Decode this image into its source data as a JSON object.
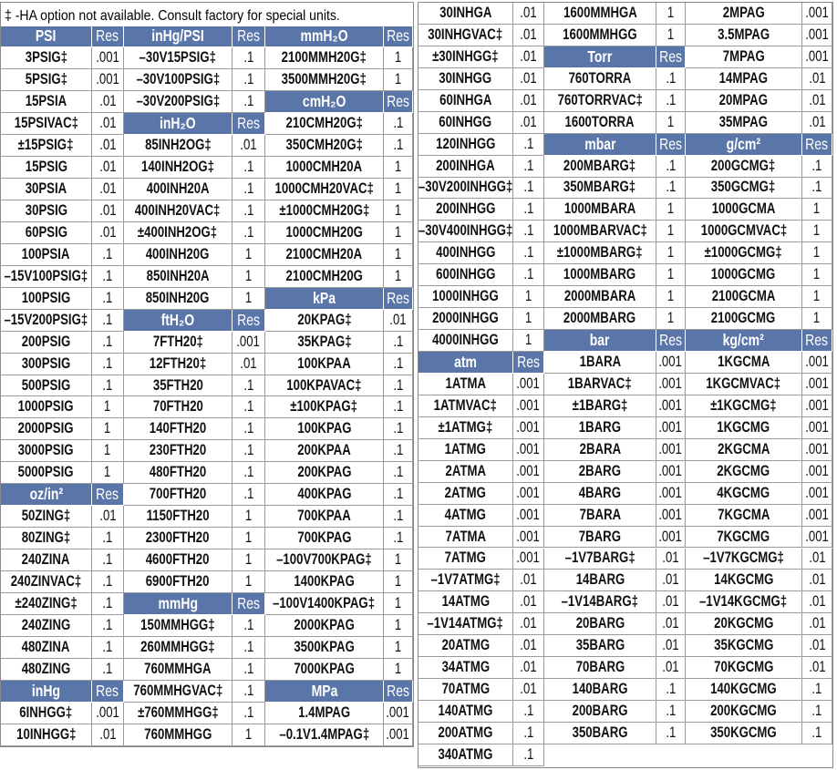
{
  "note": "‡ -HA option not available.     Consult factory for special units.",
  "colors": {
    "header_bg": "#5a76a8",
    "header_text": "#ffffff",
    "border": "#9a9a9a"
  },
  "left_table": {
    "columns": [
      [
        {
          "h": "PSI",
          "r": "Res"
        },
        [
          "3PSIG‡",
          ".001"
        ],
        [
          "5PSIG‡",
          ".001"
        ],
        [
          "15PSIA",
          ".01"
        ],
        [
          "15PSIVAC‡",
          ".01"
        ],
        [
          "±15PSIG‡",
          ".01"
        ],
        [
          "15PSIG",
          ".01"
        ],
        [
          "30PSIA",
          ".01"
        ],
        [
          "30PSIG",
          ".01"
        ],
        [
          "60PSIG",
          ".01"
        ],
        [
          "100PSIA",
          ".1"
        ],
        [
          "–15V100PSIG‡",
          ".1"
        ],
        [
          "100PSIG",
          ".1"
        ],
        [
          "–15V200PSIG‡",
          ".1"
        ],
        [
          "200PSIG",
          ".1"
        ],
        [
          "300PSIG",
          ".1"
        ],
        [
          "500PSIG",
          ".1"
        ],
        [
          "1000PSIG",
          "1"
        ],
        [
          "2000PSIG",
          "1"
        ],
        [
          "3000PSIG",
          "1"
        ],
        [
          "5000PSIG",
          "1"
        ],
        {
          "h": "oz/in²",
          "r": "Res"
        },
        [
          "50ZING‡",
          ".01"
        ],
        [
          "80ZING‡",
          ".1"
        ],
        [
          "240ZINA",
          ".1"
        ],
        [
          "240ZINVAC‡",
          ".1"
        ],
        [
          "±240ZING‡",
          ".1"
        ],
        [
          "240ZING",
          ".1"
        ],
        [
          "480ZINA",
          ".1"
        ],
        [
          "480ZING",
          ".1"
        ],
        {
          "h": "inHg",
          "r": "Res"
        },
        [
          "6INHGG‡",
          ".001"
        ],
        [
          "10INHGG‡",
          ".01"
        ]
      ],
      [
        {
          "h": "inHg/PSI",
          "r": "Res"
        },
        [
          "–30V15PSIG‡",
          ".1"
        ],
        [
          "–30V100PSIG‡",
          ".1"
        ],
        [
          "–30V200PSIG‡",
          ".1"
        ],
        {
          "h": "inH₂O",
          "r": "Res"
        },
        [
          "85INH2OG‡",
          ".01"
        ],
        [
          "140INH2OG‡",
          ".1"
        ],
        [
          "400INH20A",
          ".1"
        ],
        [
          "400INH20VAC‡",
          ".1"
        ],
        [
          "±400INH2OG‡",
          ".1"
        ],
        [
          "400INH20G",
          "1"
        ],
        [
          "850INH20A",
          "1"
        ],
        [
          "850INH20G",
          "1"
        ],
        {
          "h": "ftH₂O",
          "r": "Res"
        },
        [
          "7FTH20‡",
          ".001"
        ],
        [
          "12FTH20‡",
          ".01"
        ],
        [
          "35FTH20",
          ".1"
        ],
        [
          "70FTH20",
          ".1"
        ],
        [
          "140FTH20",
          ".1"
        ],
        [
          "230FTH20",
          ".1"
        ],
        [
          "480FTH20",
          ".1"
        ],
        [
          "700FTH20",
          ".1"
        ],
        [
          "1150FTH20",
          "1"
        ],
        [
          "2300FTH20",
          "1"
        ],
        [
          "4600FTH20",
          "1"
        ],
        [
          "6900FTH20",
          "1"
        ],
        {
          "h": "mmHg",
          "r": "Res"
        },
        [
          "150MMHGG‡",
          ".1"
        ],
        [
          "260MMHGG‡",
          ".1"
        ],
        [
          "760MMHGA",
          ".1"
        ],
        [
          "760MMHGVAC‡",
          ".1"
        ],
        [
          "±760MMHGG‡",
          ".1"
        ],
        [
          "760MMHGG",
          "1"
        ]
      ],
      [
        {
          "h": "mmH₂O",
          "r": "Res"
        },
        [
          "2100MMH20G‡",
          "1"
        ],
        [
          "3500MMH20G‡",
          "1"
        ],
        {
          "h": "cmH₂O",
          "r": "Res"
        },
        [
          "210CMH20G‡",
          ".1"
        ],
        [
          "350CMH20G‡",
          ".1"
        ],
        [
          "1000CMH20A",
          "1"
        ],
        [
          "1000CMH20VAC‡",
          "1"
        ],
        [
          "±1000CMH20G‡",
          "1"
        ],
        [
          "1000CMH20G",
          "1"
        ],
        [
          "2100CMH20A",
          "1"
        ],
        [
          "2100CMH20G",
          "1"
        ],
        {
          "h": "kPa",
          "r": "Res"
        },
        [
          "20KPAG‡",
          ".01"
        ],
        [
          "35KPAG‡",
          ".1"
        ],
        [
          "100KPAA",
          ".1"
        ],
        [
          "100KPAVAC‡",
          ".1"
        ],
        [
          "±100KPAG‡",
          ".1"
        ],
        [
          "100KPAG",
          ".1"
        ],
        [
          "200KPAA",
          ".1"
        ],
        [
          "200KPAG",
          ".1"
        ],
        [
          "400KPAG",
          ".1"
        ],
        [
          "700KPAA",
          ".1"
        ],
        [
          "700KPAG",
          ".1"
        ],
        [
          "–100V700KPAG‡",
          "1"
        ],
        [
          "1400KPAG",
          "1"
        ],
        [
          "–100V1400KPAG‡",
          "1"
        ],
        [
          "2000KPAG",
          "1"
        ],
        [
          "3500KPAG",
          "1"
        ],
        [
          "7000KPAG",
          "1"
        ],
        {
          "h": "MPa",
          "r": "Res"
        },
        [
          "1.4MPAG",
          ".001"
        ],
        [
          "–0.1V1.4MPAG‡",
          ".001"
        ]
      ]
    ]
  },
  "right_table": {
    "columns": [
      [
        [
          "30INHGA",
          ".01"
        ],
        [
          "30INHGVAC‡",
          ".01"
        ],
        [
          "±30INHGG‡",
          ".01"
        ],
        [
          "30INHGG",
          ".01"
        ],
        [
          "60INHGA",
          ".01"
        ],
        [
          "60INHGG",
          ".01"
        ],
        [
          "120INHGG",
          ".1"
        ],
        [
          "200INHGA",
          ".1"
        ],
        [
          "–30V200INHGG‡",
          ".1"
        ],
        [
          "200INHGG",
          ".1"
        ],
        [
          "–30V400INHGG‡",
          ".1"
        ],
        [
          "400INHGG",
          ".1"
        ],
        [
          "600INHGG",
          ".1"
        ],
        [
          "1000INHGG",
          "1"
        ],
        [
          "2000INHGG",
          "1"
        ],
        [
          "4000INHGG",
          "1"
        ],
        {
          "h": "atm",
          "r": "Res"
        },
        [
          "1ATMA",
          ".001"
        ],
        [
          "1ATMVAC‡",
          ".001"
        ],
        [
          "±1ATMG‡",
          ".001"
        ],
        [
          "1ATMG",
          ".001"
        ],
        [
          "2ATMA",
          ".001"
        ],
        [
          "2ATMG",
          ".001"
        ],
        [
          "4ATMG",
          ".001"
        ],
        [
          "7ATMA",
          ".001"
        ],
        [
          "7ATMG",
          ".001"
        ],
        [
          "–1V7ATMG‡",
          ".01"
        ],
        [
          "14ATMG",
          ".01"
        ],
        [
          "–1V14ATMG‡",
          ".01"
        ],
        [
          "20ATMG",
          ".01"
        ],
        [
          "34ATMG",
          ".01"
        ],
        [
          "70ATMG",
          ".01"
        ],
        [
          "140ATMG",
          ".1"
        ],
        [
          "200ATMG",
          ".1"
        ],
        [
          "340ATMG",
          ".1"
        ]
      ],
      [
        [
          "1600MMHGA",
          "1"
        ],
        [
          "1600MMHGG",
          "1"
        ],
        {
          "h": "Torr",
          "r": "Res"
        },
        [
          "760TORRA",
          ".1"
        ],
        [
          "760TORRVAC‡",
          ".1"
        ],
        [
          "1600TORRA",
          "1"
        ],
        {
          "h": "mbar",
          "r": "Res"
        },
        [
          "200MBARG‡",
          ".1"
        ],
        [
          "350MBARG‡",
          ".1"
        ],
        [
          "1000MBARA",
          "1"
        ],
        [
          "1000MBARVAC‡",
          "1"
        ],
        [
          "±1000MBARG‡",
          "1"
        ],
        [
          "1000MBARG",
          "1"
        ],
        [
          "2000MBARA",
          "1"
        ],
        [
          "2000MBARG",
          "1"
        ],
        {
          "h": "bar",
          "r": "Res"
        },
        [
          "1BARA",
          ".001"
        ],
        [
          "1BARVAC‡",
          ".001"
        ],
        [
          "±1BARG‡",
          ".001"
        ],
        [
          "1BARG",
          ".001"
        ],
        [
          "2BARA",
          ".001"
        ],
        [
          "2BARG",
          ".001"
        ],
        [
          "4BARG",
          ".001"
        ],
        [
          "7BARA",
          ".001"
        ],
        [
          "7BARG",
          ".001"
        ],
        [
          "–1V7BARG‡",
          ".01"
        ],
        [
          "14BARG",
          ".01"
        ],
        [
          "–1V14BARG‡",
          ".01"
        ],
        [
          "20BARG",
          ".01"
        ],
        [
          "35BARG",
          ".01"
        ],
        [
          "70BARG",
          ".01"
        ],
        [
          "140BARG",
          ".1"
        ],
        [
          "200BARG",
          ".1"
        ],
        [
          "350BARG",
          ".1"
        ]
      ],
      [
        [
          "2MPAG",
          ".001"
        ],
        [
          "3.5MPAG",
          ".001"
        ],
        [
          "7MPAG",
          ".001"
        ],
        [
          "14MPAG",
          ".01"
        ],
        [
          "20MPAG",
          ".01"
        ],
        [
          "35MPAG",
          ".01"
        ],
        {
          "h": "g/cm²",
          "r": "Res"
        },
        [
          "200GCMG‡",
          ".1"
        ],
        [
          "350GCMG‡",
          ".1"
        ],
        [
          "1000GCMA",
          "1"
        ],
        [
          "1000GCMVAC‡",
          "1"
        ],
        [
          "±1000GCMG‡",
          "1"
        ],
        [
          "1000GCMG",
          "1"
        ],
        [
          "2100GCMA",
          "1"
        ],
        [
          "2100GCMG",
          "1"
        ],
        {
          "h": "kg/cm²",
          "r": "Res"
        },
        [
          "1KGCMA",
          ".001"
        ],
        [
          "1KGCMVAC‡",
          ".001"
        ],
        [
          "±1KGCMG‡",
          ".001"
        ],
        [
          "1KGCMG",
          ".001"
        ],
        [
          "2KGCMA",
          ".001"
        ],
        [
          "2KGCMG",
          ".001"
        ],
        [
          "4KGCMG",
          ".001"
        ],
        [
          "7KGCMA",
          ".001"
        ],
        [
          "7KGCMG",
          ".001"
        ],
        [
          "–1V7KGCMG‡",
          ".01"
        ],
        [
          "14KGCMG",
          ".01"
        ],
        [
          "–1V14KGCMG‡",
          ".01"
        ],
        [
          "20KGCMG",
          ".01"
        ],
        [
          "35KGCMG",
          ".01"
        ],
        [
          "70KGCMG",
          ".01"
        ],
        [
          "140KGCMG",
          ".1"
        ],
        [
          "200KGCMG",
          ".1"
        ],
        [
          "350KGCMG",
          ".1"
        ]
      ]
    ]
  }
}
